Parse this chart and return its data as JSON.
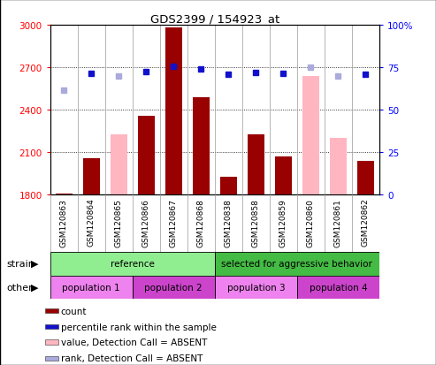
{
  "title": "GDS2399 / 154923_at",
  "samples": [
    "GSM120863",
    "GSM120864",
    "GSM120865",
    "GSM120866",
    "GSM120867",
    "GSM120868",
    "GSM120838",
    "GSM120858",
    "GSM120859",
    "GSM120860",
    "GSM120861",
    "GSM120862"
  ],
  "count_values": [
    1810,
    2060,
    null,
    2360,
    2980,
    2490,
    1930,
    2230,
    2070,
    null,
    null,
    2040
  ],
  "absent_values": [
    null,
    null,
    2230,
    null,
    null,
    null,
    null,
    null,
    null,
    2640,
    2200,
    null
  ],
  "percentile_rank": [
    null,
    2660,
    null,
    2670,
    2710,
    2690,
    2650,
    2665,
    2660,
    null,
    null,
    2650
  ],
  "absent_rank": [
    2540,
    null,
    2640,
    null,
    null,
    null,
    null,
    null,
    null,
    2700,
    2640,
    null
  ],
  "ymin": 1800,
  "ymax": 3000,
  "yticks": [
    1800,
    2100,
    2400,
    2700,
    3000
  ],
  "right_ytick_labels": [
    "0",
    "25",
    "50",
    "75",
    "100%"
  ],
  "bar_color": "#990000",
  "absent_bar_color": "#FFB6C1",
  "dot_color": "#1111CC",
  "absent_dot_color": "#AAAADD",
  "strain_row": [
    {
      "label": "reference",
      "start": 0,
      "end": 6,
      "color": "#90EE90"
    },
    {
      "label": "selected for aggressive behavior",
      "start": 6,
      "end": 12,
      "color": "#44BB44"
    }
  ],
  "other_row": [
    {
      "label": "population 1",
      "start": 0,
      "end": 3,
      "color": "#EE82EE"
    },
    {
      "label": "population 2",
      "start": 3,
      "end": 6,
      "color": "#CC44CC"
    },
    {
      "label": "population 3",
      "start": 6,
      "end": 9,
      "color": "#EE82EE"
    },
    {
      "label": "population 4",
      "start": 9,
      "end": 12,
      "color": "#CC44CC"
    }
  ],
  "legend_items": [
    {
      "label": "count",
      "color": "#990000"
    },
    {
      "label": "percentile rank within the sample",
      "color": "#1111CC"
    },
    {
      "label": "value, Detection Call = ABSENT",
      "color": "#FFB6C1"
    },
    {
      "label": "rank, Detection Call = ABSENT",
      "color": "#AAAADD"
    }
  ],
  "fig_bg": "#ffffff"
}
